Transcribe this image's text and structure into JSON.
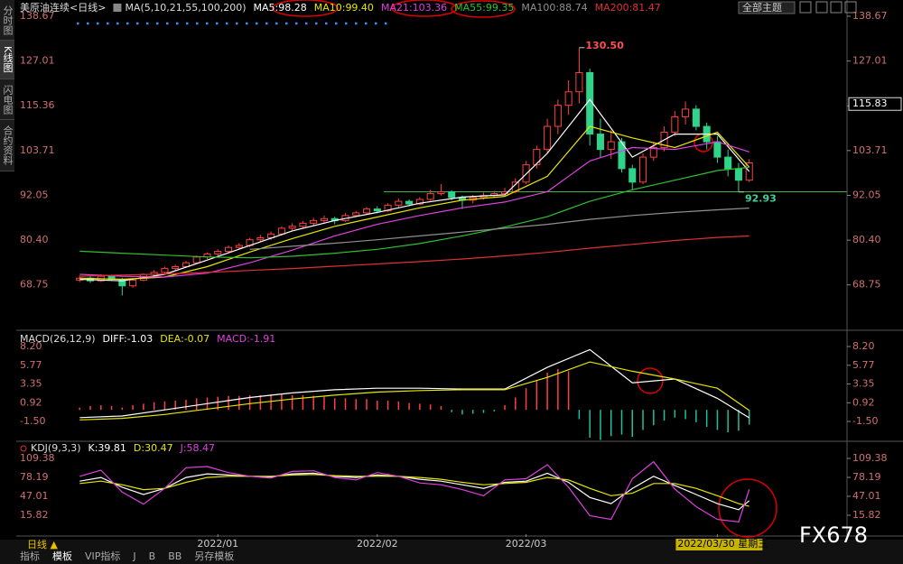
{
  "header": {
    "symbol": "美原油连续<日线>",
    "theme": "全部主题"
  },
  "sidebar": [
    "分时图",
    "K线图",
    "闪电图",
    "合约资料"
  ],
  "footer": {
    "period": "日线 ▲",
    "tabs": [
      "指标",
      "模板",
      "VIP指标",
      "J",
      "B",
      "BB",
      "另存模板"
    ],
    "watermark": "FX678"
  },
  "chart_data": [
    {
      "type": "candlestick",
      "title": "MA(5,10,21,55,100,200)",
      "up_color": "#ff4040",
      "down_color": "#2fd38a",
      "xlim": [
        -5.8,
        72.2
      ],
      "ylim": [
        57.17,
        138.67
      ],
      "yticks": [
        138.67,
        127.01,
        115.36,
        103.71,
        92.05,
        {
          "value": 80.4,
          "label": "80.40"
        },
        68.75
      ],
      "ohlc": [
        [
          70.0,
          71.2,
          69.5,
          70.5
        ],
        [
          70.5,
          71.0,
          69.3,
          69.8
        ],
        [
          69.8,
          71.5,
          69.5,
          71.0
        ],
        [
          71.0,
          71.4,
          69.8,
          70.2
        ],
        [
          70.2,
          70.6,
          66.0,
          68.5
        ],
        [
          68.5,
          70.4,
          68.0,
          70.0
        ],
        [
          70.0,
          71.8,
          69.7,
          71.5
        ],
        [
          71.5,
          72.6,
          71.0,
          72.0
        ],
        [
          72.0,
          73.5,
          71.6,
          73.0
        ],
        [
          73.0,
          74.0,
          72.5,
          73.5
        ],
        [
          73.5,
          75.0,
          73.2,
          74.5
        ],
        [
          74.5,
          76.4,
          74.2,
          76.0
        ],
        [
          76.0,
          77.2,
          75.5,
          76.8
        ],
        [
          76.8,
          78.0,
          76.0,
          77.5
        ],
        [
          77.5,
          79.0,
          77.0,
          78.5
        ],
        [
          78.5,
          79.6,
          78.0,
          79.0
        ],
        [
          79.0,
          81.0,
          78.6,
          80.5
        ],
        [
          80.5,
          81.8,
          80.0,
          81.0
        ],
        [
          81.0,
          82.6,
          80.5,
          82.0
        ],
        [
          82.0,
          84.0,
          81.6,
          83.5
        ],
        [
          83.5,
          84.8,
          83.0,
          84.0
        ],
        [
          84.0,
          85.4,
          83.5,
          84.8
        ],
        [
          84.8,
          86.2,
          84.2,
          85.5
        ],
        [
          85.5,
          86.8,
          85.0,
          86.0
        ],
        [
          86.0,
          86.5,
          84.5,
          85.5
        ],
        [
          85.5,
          87.4,
          85.2,
          86.8
        ],
        [
          86.8,
          88.0,
          86.4,
          87.5
        ],
        [
          87.5,
          89.0,
          87.0,
          88.5
        ],
        [
          88.5,
          89.2,
          87.4,
          88.0
        ],
        [
          88.0,
          90.0,
          87.8,
          89.5
        ],
        [
          89.5,
          91.2,
          89.0,
          90.5
        ],
        [
          90.5,
          91.0,
          89.2,
          89.8
        ],
        [
          89.8,
          91.6,
          89.5,
          91.0
        ],
        [
          91.0,
          93.5,
          90.6,
          92.5
        ],
        [
          92.5,
          95.0,
          92.0,
          93.0
        ],
        [
          93.0,
          93.4,
          90.8,
          91.5
        ],
        [
          91.5,
          92.0,
          88.5,
          90.8
        ],
        [
          90.8,
          92.2,
          90.0,
          91.5
        ],
        [
          91.5,
          92.8,
          91.0,
          92.0
        ],
        [
          92.0,
          93.2,
          91.4,
          92.5
        ],
        [
          92.5,
          94.0,
          92.0,
          93.0
        ],
        [
          93.0,
          96.5,
          92.6,
          95.5
        ],
        [
          95.5,
          101.0,
          95.0,
          100.0
        ],
        [
          100.0,
          105.0,
          99.0,
          104.0
        ],
        [
          104.0,
          112.0,
          103.0,
          110.0
        ],
        [
          110.0,
          117.0,
          108.0,
          115.5
        ],
        [
          115.5,
          122.0,
          113.0,
          119.0
        ],
        [
          119.0,
          130.5,
          116.0,
          124.0
        ],
        [
          124.0,
          125.0,
          105.0,
          108.0
        ],
        [
          108.0,
          112.0,
          102.0,
          104.0
        ],
        [
          104.0,
          109.0,
          101.5,
          106.0
        ],
        [
          106.0,
          107.0,
          98.0,
          99.0
        ],
        [
          99.0,
          100.0,
          93.5,
          95.5
        ],
        [
          95.5,
          103.0,
          95.0,
          102.0
        ],
        [
          102.0,
          106.0,
          101.0,
          104.5
        ],
        [
          104.5,
          110.0,
          103.5,
          108.5
        ],
        [
          108.5,
          114.0,
          107.5,
          112.5
        ],
        [
          112.5,
          116.5,
          110.5,
          114.5
        ],
        [
          114.5,
          115.5,
          109.0,
          110.0
        ],
        [
          110.0,
          111.0,
          104.0,
          106.0
        ],
        [
          106.0,
          107.5,
          100.5,
          102.0
        ],
        [
          102.0,
          104.0,
          97.0,
          99.0
        ],
        [
          99.0,
          100.5,
          92.93,
          96.0
        ],
        [
          96.0,
          101.5,
          95.5,
          100.5
        ]
      ],
      "series": [
        {
          "name": "MA5:98.28",
          "color": "#ffffff",
          "x": [
            0,
            4,
            8,
            12,
            16,
            20,
            24,
            28,
            32,
            36,
            40,
            44,
            48,
            52,
            56,
            60,
            63
          ],
          "values": [
            70.2,
            69.8,
            71.5,
            75.2,
            79.0,
            82.8,
            85.5,
            87.6,
            90.0,
            91.6,
            92.2,
            103.0,
            117.0,
            102.0,
            108.0,
            108.0,
            98.28
          ]
        },
        {
          "name": "MA10:99.40",
          "color": "#e6e600",
          "x": [
            0,
            4,
            8,
            12,
            16,
            20,
            24,
            28,
            32,
            36,
            40,
            44,
            48,
            52,
            56,
            60,
            63
          ],
          "values": [
            70.5,
            70.2,
            70.8,
            73.5,
            77.3,
            80.8,
            84.0,
            86.4,
            88.8,
            90.8,
            91.8,
            97.0,
            110.0,
            107.0,
            104.5,
            108.5,
            99.4
          ]
        },
        {
          "name": "MA21:103.36",
          "color": "#e040e0",
          "x": [
            0,
            4,
            8,
            12,
            16,
            20,
            24,
            28,
            32,
            36,
            40,
            44,
            48,
            52,
            56,
            60,
            63
          ],
          "values": [
            71.5,
            71.0,
            70.8,
            71.8,
            74.5,
            77.8,
            81.5,
            84.5,
            86.8,
            88.8,
            90.3,
            93.0,
            101.0,
            104.5,
            104.0,
            106.0,
            103.36
          ]
        },
        {
          "name": "MA55:99.35",
          "color": "#30c030",
          "x": [
            0,
            4,
            8,
            12,
            16,
            20,
            24,
            28,
            32,
            36,
            40,
            44,
            48,
            52,
            56,
            60,
            63
          ],
          "values": [
            77.5,
            77.0,
            76.5,
            76.0,
            75.8,
            76.2,
            77.0,
            78.0,
            79.5,
            81.5,
            83.8,
            86.5,
            90.5,
            93.5,
            96.0,
            98.5,
            99.35
          ]
        },
        {
          "name": "MA100:88.74",
          "color": "#909090",
          "x": [
            0,
            4,
            8,
            12,
            16,
            20,
            24,
            28,
            32,
            36,
            40,
            44,
            48,
            52,
            56,
            60,
            63
          ],
          "values": [
            null,
            null,
            null,
            null,
            78.0,
            78.8,
            79.6,
            80.5,
            81.5,
            82.5,
            83.5,
            84.5,
            85.8,
            86.8,
            87.6,
            88.3,
            88.74
          ]
        },
        {
          "name": "MA200:81.47",
          "color": "#e03030",
          "x": [
            0,
            4,
            8,
            12,
            16,
            20,
            24,
            28,
            32,
            36,
            40,
            44,
            48,
            52,
            56,
            60,
            63
          ],
          "values": [
            71.0,
            71.3,
            71.6,
            72.0,
            72.5,
            73.0,
            73.6,
            74.2,
            74.8,
            75.5,
            76.3,
            77.2,
            78.3,
            79.3,
            80.3,
            81.1,
            81.47
          ]
        }
      ],
      "annotations": [
        {
          "label": "130.50",
          "value": 130.5,
          "x": 47,
          "color": "#ff5050"
        },
        {
          "label": "92.93",
          "value": 92.93,
          "x": 62,
          "color": "#40d0a0"
        }
      ],
      "price_tag": {
        "label": "115.83",
        "value": 115.83
      },
      "support_line": {
        "value": 93.0,
        "x": [
          28.6,
          72.2
        ],
        "color": "#40b040"
      }
    },
    {
      "type": "macd",
      "title": "MACD(26,12,9)",
      "xlim": [
        -5.8,
        72.2
      ],
      "ylim": [
        -3.95,
        10.07
      ],
      "yticks": [
        {
          "value": 8.2,
          "label": "8.20"
        },
        5.77,
        3.35,
        0.92,
        {
          "value": -1.5,
          "label": "-1.50"
        }
      ],
      "series": [
        {
          "name": "DIFF:-1.03",
          "color": "#ffffff",
          "x": [
            0,
            4,
            8,
            12,
            16,
            20,
            24,
            28,
            32,
            36,
            40,
            44,
            48,
            52,
            56,
            60,
            63
          ],
          "values": [
            -1.0,
            -0.8,
            0.0,
            0.8,
            1.6,
            2.2,
            2.6,
            2.8,
            2.8,
            2.7,
            2.7,
            5.5,
            7.8,
            3.5,
            4.0,
            1.5,
            -1.03
          ]
        },
        {
          "name": "DEA:-0.07",
          "color": "#e6e600",
          "x": [
            0,
            4,
            8,
            12,
            16,
            20,
            24,
            28,
            32,
            36,
            40,
            44,
            48,
            52,
            56,
            60,
            63
          ],
          "values": [
            -1.3,
            -1.1,
            -0.6,
            0.1,
            0.8,
            1.4,
            1.9,
            2.3,
            2.5,
            2.6,
            2.6,
            4.2,
            6.2,
            5.0,
            4.0,
            2.8,
            -0.07
          ]
        }
      ],
      "histogram": {
        "name": "MACD:-1.91",
        "color": "#e040e0",
        "up_color": "#ff4040",
        "down_color": "#20c0a0",
        "values": [
          0.3,
          0.5,
          0.6,
          0.5,
          0.3,
          0.6,
          0.8,
          1.0,
          1.1,
          1.2,
          1.3,
          1.5,
          1.6,
          1.7,
          1.8,
          1.8,
          1.9,
          1.9,
          2.0,
          2.0,
          1.9,
          1.9,
          1.8,
          1.7,
          1.5,
          1.5,
          1.4,
          1.4,
          1.2,
          1.2,
          1.1,
          0.9,
          0.8,
          0.7,
          0.5,
          -0.3,
          -0.6,
          -0.5,
          -0.4,
          -0.2,
          0.6,
          1.6,
          2.8,
          3.8,
          4.8,
          5.3,
          5.0,
          -1.2,
          -3.6,
          -3.9,
          -3.4,
          -3.2,
          -3.5,
          -2.6,
          -2.0,
          -1.4,
          -1.0,
          -1.2,
          -1.6,
          -2.2,
          -2.6,
          -2.9,
          -2.7,
          -1.91
        ]
      }
    },
    {
      "type": "kdj",
      "title": "KDJ(9,3,3)",
      "xlim": [
        -5.8,
        72.2
      ],
      "ylim": [
        -15.4,
        136.1
      ],
      "yticks": [
        109.38,
        78.19,
        47.01,
        15.82
      ],
      "xticks": [
        {
          "value": 13,
          "label": "2022/01"
        },
        {
          "value": 28,
          "label": "2022/02"
        },
        {
          "value": 42,
          "label": "2022/03"
        },
        {
          "value": 60,
          "label": "2022/03/30 星期三"
        }
      ],
      "series": [
        {
          "name": "K:39.81",
          "color": "#ffffff",
          "x": [
            0,
            2,
            4,
            6,
            8,
            10,
            12,
            14,
            16,
            18,
            20,
            22,
            24,
            26,
            28,
            30,
            32,
            34,
            36,
            38,
            40,
            42,
            44,
            46,
            48,
            50,
            52,
            54,
            56,
            58,
            60,
            62,
            63
          ],
          "values": [
            72,
            78,
            62,
            50,
            60,
            78,
            84,
            82,
            80,
            79,
            84,
            85,
            80,
            78,
            82,
            80,
            75,
            72,
            66,
            60,
            70,
            72,
            85,
            70,
            45,
            35,
            60,
            80,
            65,
            50,
            35,
            25,
            39.81
          ]
        },
        {
          "name": "D:30.47",
          "color": "#e6e600",
          "x": [
            0,
            2,
            4,
            6,
            8,
            10,
            12,
            14,
            16,
            18,
            20,
            22,
            24,
            26,
            28,
            30,
            32,
            34,
            36,
            38,
            40,
            42,
            44,
            46,
            48,
            50,
            52,
            54,
            56,
            58,
            60,
            62,
            63
          ],
          "values": [
            68,
            72,
            66,
            58,
            60,
            70,
            78,
            80,
            80,
            80,
            82,
            83,
            81,
            80,
            80,
            80,
            78,
            75,
            70,
            66,
            68,
            70,
            78,
            74,
            60,
            48,
            52,
            68,
            68,
            60,
            48,
            35,
            30.47
          ]
        },
        {
          "name": "J:58.47",
          "color": "#e040e0",
          "x": [
            0,
            2,
            4,
            6,
            8,
            10,
            12,
            14,
            16,
            18,
            20,
            22,
            24,
            26,
            28,
            30,
            32,
            34,
            36,
            38,
            40,
            42,
            44,
            46,
            48,
            50,
            52,
            54,
            56,
            58,
            60,
            62,
            63
          ],
          "values": [
            80,
            90,
            54,
            34,
            60,
            94,
            96,
            86,
            80,
            77,
            88,
            89,
            78,
            74,
            86,
            80,
            69,
            66,
            58,
            48,
            74,
            76,
            99,
            62,
            15,
            9,
            76,
            104,
            59,
            30,
            9,
            5,
            58.47
          ]
        }
      ]
    }
  ]
}
